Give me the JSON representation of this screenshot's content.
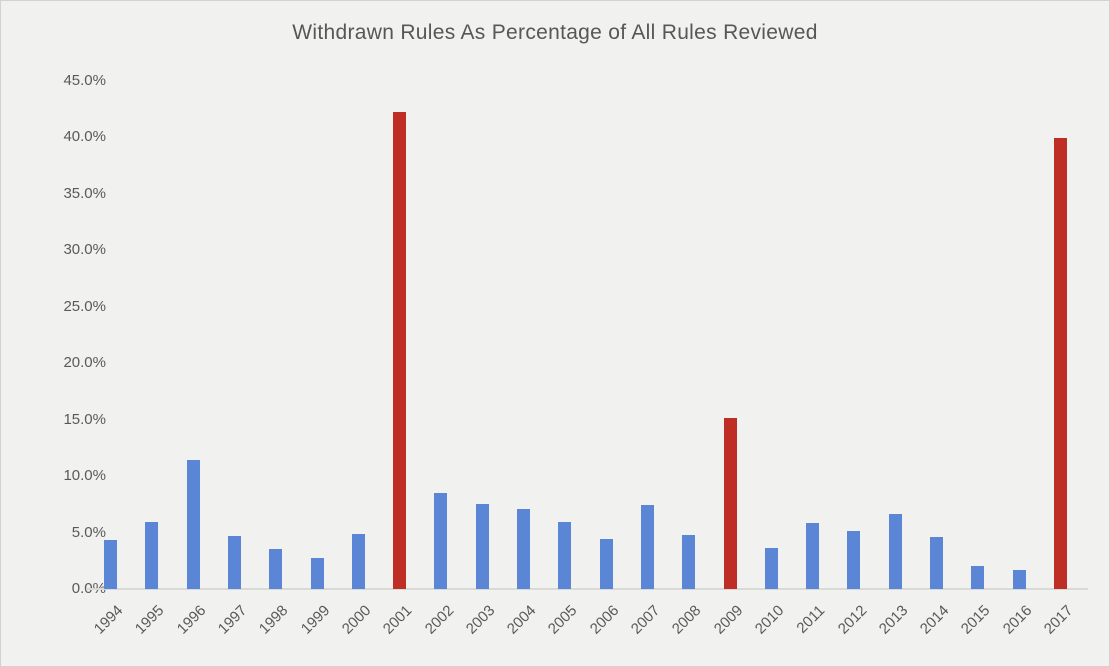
{
  "chart_data": {
    "type": "bar",
    "title": "Withdrawn Rules As Percentage of All Rules Reviewed",
    "categories": [
      "1994",
      "1995",
      "1996",
      "1997",
      "1998",
      "1999",
      "2000",
      "2001",
      "2002",
      "2003",
      "2004",
      "2005",
      "2006",
      "2007",
      "2008",
      "2009",
      "2010",
      "2011",
      "2012",
      "2013",
      "2014",
      "2015",
      "2016",
      "2017"
    ],
    "values": [
      4.3,
      5.9,
      11.4,
      4.7,
      3.5,
      2.7,
      4.9,
      42.2,
      8.5,
      7.5,
      7.1,
      5.9,
      4.4,
      7.4,
      4.8,
      15.1,
      3.6,
      5.8,
      5.1,
      6.6,
      4.6,
      2.0,
      1.7,
      39.9
    ],
    "unit": "%",
    "highlighted_categories": [
      "2001",
      "2009",
      "2017"
    ],
    "bar_color_default": "#5b86d5",
    "bar_color_highlight": "#bf2e25",
    "y_ticks": [
      "45.0%",
      "40.0%",
      "35.0%",
      "30.0%",
      "25.0%",
      "20.0%",
      "15.0%",
      "10.0%",
      "5.0%",
      "0.0%"
    ],
    "y_tick_values": [
      45,
      40,
      35,
      30,
      25,
      20,
      15,
      10,
      5,
      0
    ],
    "ylim": [
      0,
      45
    ],
    "xlabel": "",
    "ylabel": "",
    "grid": "off",
    "legend": "none",
    "background_color": "#f1f1ef",
    "text_color": "#595959",
    "title_color": "#575757"
  }
}
